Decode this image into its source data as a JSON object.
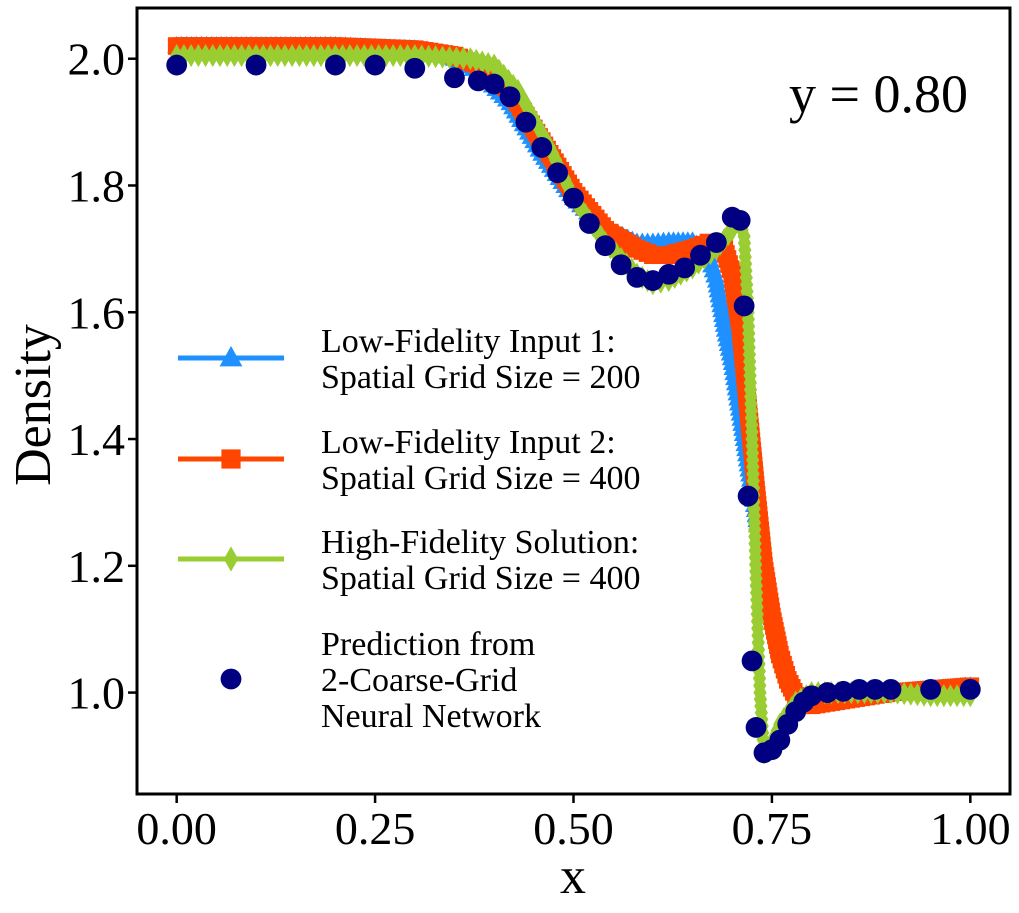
{
  "chart_data": {
    "type": "line",
    "title": "",
    "xlabel": "x",
    "ylabel": "Density",
    "annotation": "y = 0.80",
    "xlim": [
      -0.05,
      1.05
    ],
    "ylim": [
      0.84,
      2.08
    ],
    "xticks": [
      0.0,
      0.25,
      0.5,
      0.75,
      1.0
    ],
    "xtick_labels": [
      "0.00",
      "0.25",
      "0.50",
      "0.75",
      "1.00"
    ],
    "yticks": [
      1.0,
      1.2,
      1.4,
      1.6,
      1.8,
      2.0
    ],
    "ytick_labels": [
      "1.0",
      "1.2",
      "1.4",
      "1.6",
      "1.8",
      "2.0"
    ],
    "grid": false,
    "legend_position": "center-left",
    "series": [
      {
        "name": "Low-Fidelity Input 1:\nSpatial Grid Size = 200",
        "color": "#1e90ff",
        "marker": "triangle",
        "x": [
          0.0,
          0.1,
          0.2,
          0.3,
          0.35,
          0.38,
          0.42,
          0.46,
          0.5,
          0.54,
          0.58,
          0.6,
          0.62,
          0.65,
          0.67,
          0.68,
          0.69,
          0.7,
          0.71,
          0.72,
          0.73,
          0.74,
          0.75,
          0.76,
          0.77,
          0.78,
          0.8,
          0.85,
          0.9,
          0.95,
          1.0
        ],
        "y": [
          2.02,
          2.02,
          2.02,
          2.015,
          2.0,
          1.98,
          1.93,
          1.85,
          1.78,
          1.73,
          1.71,
          1.71,
          1.712,
          1.712,
          1.69,
          1.65,
          1.58,
          1.52,
          1.44,
          1.36,
          1.28,
          1.2,
          1.13,
          1.07,
          1.03,
          1.0,
          0.995,
          1.0,
          1.0,
          1.005,
          1.01
        ]
      },
      {
        "name": "Low-Fidelity Input 2:\nSpatial Grid Size = 400",
        "color": "#ff4500",
        "marker": "square",
        "x": [
          0.0,
          0.1,
          0.2,
          0.3,
          0.35,
          0.38,
          0.42,
          0.46,
          0.5,
          0.54,
          0.58,
          0.6,
          0.62,
          0.65,
          0.67,
          0.69,
          0.7,
          0.71,
          0.72,
          0.73,
          0.74,
          0.75,
          0.76,
          0.77,
          0.78,
          0.79,
          0.8,
          0.85,
          0.9,
          0.95,
          1.0
        ],
        "y": [
          2.02,
          2.02,
          2.02,
          2.015,
          2.005,
          1.99,
          1.95,
          1.87,
          1.79,
          1.73,
          1.7,
          1.69,
          1.69,
          1.7,
          1.71,
          1.7,
          1.66,
          1.58,
          1.45,
          1.32,
          1.2,
          1.12,
          1.06,
          1.02,
          0.995,
          0.98,
          0.98,
          0.99,
          1.0,
          1.005,
          1.01
        ]
      },
      {
        "name": "High-Fidelity Solution:\nSpatial Grid Size = 400",
        "color": "#9acd32",
        "marker": "diamond",
        "x": [
          0.0,
          0.1,
          0.2,
          0.3,
          0.37,
          0.4,
          0.43,
          0.47,
          0.5,
          0.54,
          0.58,
          0.6,
          0.62,
          0.65,
          0.68,
          0.7,
          0.71,
          0.715,
          0.72,
          0.725,
          0.73,
          0.735,
          0.74,
          0.75,
          0.76,
          0.78,
          0.8,
          0.85,
          0.9,
          0.95,
          1.0
        ],
        "y": [
          2.005,
          2.005,
          2.005,
          2.005,
          2.0,
          1.99,
          1.95,
          1.86,
          1.78,
          1.71,
          1.66,
          1.645,
          1.65,
          1.67,
          1.7,
          1.73,
          1.74,
          1.72,
          1.6,
          1.4,
          1.18,
          1.0,
          0.905,
          0.92,
          0.95,
          0.985,
          1.0,
          1.0,
          1.0,
          0.995,
          0.995
        ]
      },
      {
        "name": "Prediction from\n2-Coarse-Grid\nNeural Network",
        "color": "#000080",
        "marker": "circle",
        "x": [
          0.0,
          0.1,
          0.2,
          0.25,
          0.3,
          0.35,
          0.38,
          0.4,
          0.42,
          0.44,
          0.46,
          0.48,
          0.5,
          0.52,
          0.54,
          0.56,
          0.58,
          0.6,
          0.62,
          0.64,
          0.66,
          0.68,
          0.7,
          0.71,
          0.715,
          0.72,
          0.725,
          0.73,
          0.74,
          0.75,
          0.76,
          0.77,
          0.78,
          0.79,
          0.8,
          0.82,
          0.84,
          0.86,
          0.88,
          0.9,
          0.95,
          1.0
        ],
        "y": [
          1.99,
          1.99,
          1.99,
          1.99,
          1.985,
          1.97,
          1.965,
          1.96,
          1.94,
          1.9,
          1.86,
          1.82,
          1.78,
          1.74,
          1.705,
          1.675,
          1.655,
          1.65,
          1.66,
          1.67,
          1.69,
          1.71,
          1.75,
          1.745,
          1.61,
          1.31,
          1.05,
          0.945,
          0.905,
          0.91,
          0.925,
          0.95,
          0.97,
          0.985,
          0.995,
          1.0,
          1.002,
          1.005,
          1.005,
          1.005,
          1.005,
          1.005
        ]
      }
    ]
  }
}
